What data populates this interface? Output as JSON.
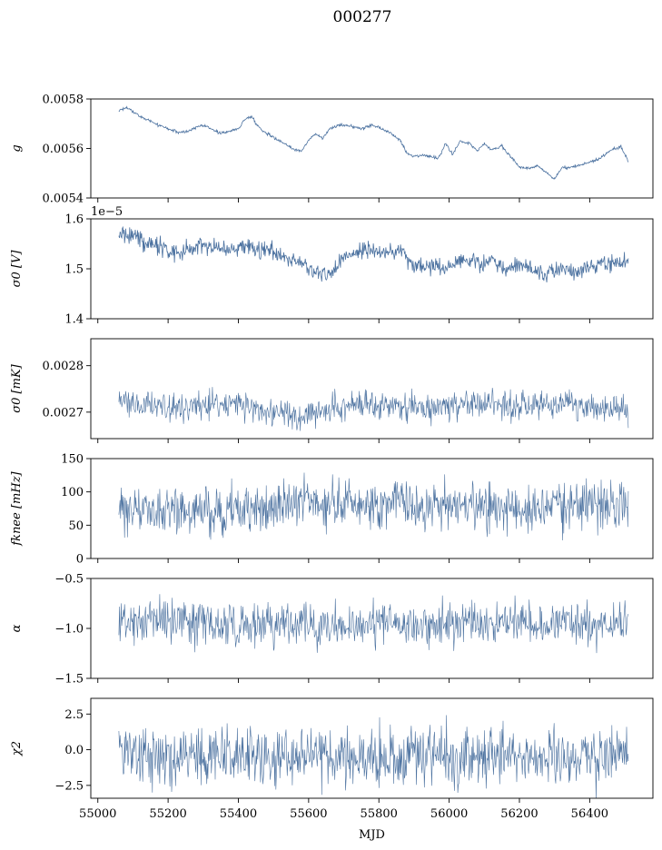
{
  "figure": {
    "title": "000277",
    "line_color": "#4c72a0"
  },
  "chart_data": [
    {
      "type": "line",
      "ylabel": "g",
      "ylim": [
        0.0054,
        0.0058
      ],
      "yticks": [
        0.0054,
        0.0056,
        0.0058
      ],
      "ytick_labels": [
        "0.0054",
        "0.0056",
        "0.0058"
      ],
      "offset_label": "",
      "xlim": [
        54980,
        56580
      ],
      "noise": 3e-06,
      "series": [
        {
          "x": [
            55060,
            55080,
            55100,
            55120,
            55150,
            55180,
            55200,
            55230,
            55260,
            55290,
            55310,
            55330,
            55350,
            55380,
            55400,
            55420,
            55440,
            55450,
            55470,
            55500,
            55530,
            55560,
            55580,
            55600,
            55620,
            55640,
            55660,
            55690,
            55720,
            55750,
            55780,
            55800,
            55830,
            55860,
            55880,
            55900,
            55940,
            55970,
            55990,
            56010,
            56030,
            56060,
            56080,
            56100,
            56120,
            56150,
            56170,
            56200,
            56220,
            56240,
            56250,
            56280,
            56300,
            56320,
            56350,
            56380,
            56400,
            56430,
            56460,
            56490,
            56510
          ],
          "y": [
            0.005755,
            0.005765,
            0.00575,
            0.00573,
            0.00571,
            0.00569,
            0.00568,
            0.005665,
            0.00567,
            0.005695,
            0.00569,
            0.005675,
            0.00566,
            0.00567,
            0.00568,
            0.00572,
            0.00573,
            0.0057,
            0.00567,
            0.005645,
            0.00562,
            0.005595,
            0.00559,
            0.005635,
            0.00566,
            0.00564,
            0.00568,
            0.005695,
            0.00569,
            0.00568,
            0.005695,
            0.005685,
            0.005665,
            0.005635,
            0.00558,
            0.00557,
            0.00557,
            0.00556,
            0.00562,
            0.005575,
            0.00563,
            0.00562,
            0.00559,
            0.00562,
            0.005595,
            0.00561,
            0.005575,
            0.005525,
            0.00552,
            0.005525,
            0.00553,
            0.0055,
            0.005475,
            0.00552,
            0.005525,
            0.005535,
            0.005545,
            0.00556,
            0.005595,
            0.005605,
            0.005545
          ]
        }
      ]
    },
    {
      "type": "line",
      "ylabel": "σ0 [V]",
      "ylim": [
        1.4,
        1.6
      ],
      "yticks": [
        1.4,
        1.5,
        1.6
      ],
      "ytick_labels": [
        "1.4",
        "1.5",
        "1.6"
      ],
      "offset_label": "1e−5",
      "xlim": [
        54980,
        56580
      ],
      "noise": 0.009,
      "series": [
        {
          "x": [
            55060,
            55100,
            55140,
            55180,
            55200,
            55230,
            55260,
            55300,
            55340,
            55380,
            55420,
            55450,
            55480,
            55520,
            55550,
            55580,
            55600,
            55620,
            55640,
            55660,
            55690,
            55720,
            55760,
            55800,
            55840,
            55870,
            55890,
            55910,
            55940,
            55970,
            56000,
            56030,
            56060,
            56090,
            56120,
            56150,
            56170,
            56200,
            56220,
            56240,
            56260,
            56280,
            56290,
            56310,
            56340,
            56370,
            56400,
            56430,
            56460,
            56490,
            56510
          ],
          "y": [
            1.57,
            1.565,
            1.55,
            1.545,
            1.54,
            1.53,
            1.54,
            1.545,
            1.545,
            1.54,
            1.545,
            1.54,
            1.54,
            1.525,
            1.52,
            1.515,
            1.5,
            1.49,
            1.495,
            1.485,
            1.515,
            1.53,
            1.54,
            1.535,
            1.535,
            1.54,
            1.51,
            1.505,
            1.505,
            1.505,
            1.5,
            1.52,
            1.52,
            1.51,
            1.515,
            1.505,
            1.5,
            1.505,
            1.505,
            1.5,
            1.485,
            1.495,
            1.495,
            1.495,
            1.5,
            1.495,
            1.505,
            1.51,
            1.515,
            1.515,
            1.515
          ]
        }
      ]
    },
    {
      "type": "line",
      "ylabel": "σ0 [mK]",
      "ylim": [
        0.002643,
        0.002858
      ],
      "yticks": [
        0.0027,
        0.0028
      ],
      "ytick_labels": [
        "0.0027",
        "0.0028"
      ],
      "offset_label": "",
      "xlim": [
        54980,
        56580
      ],
      "noise": 1.5e-05,
      "series": [
        {
          "x": [
            55060,
            55120,
            55180,
            55240,
            55300,
            55360,
            55400,
            55440,
            55480,
            55520,
            55560,
            55600,
            55640,
            55680,
            55720,
            55760,
            55800,
            55840,
            55880,
            55910,
            55940,
            55980,
            56020,
            56060,
            56100,
            56140,
            56180,
            56220,
            56260,
            56290,
            56320,
            56360,
            56400,
            56440,
            56480,
            56510
          ],
          "y": [
            0.002722,
            0.002718,
            0.002715,
            0.002712,
            0.002716,
            0.002718,
            0.002722,
            0.002712,
            0.002702,
            0.002698,
            0.002688,
            0.002695,
            0.002705,
            0.002712,
            0.002715,
            0.002714,
            0.002716,
            0.002712,
            0.002708,
            0.002714,
            0.002706,
            0.002712,
            0.002716,
            0.00272,
            0.002718,
            0.002716,
            0.002712,
            0.002714,
            0.002718,
            0.002712,
            0.00272,
            0.002718,
            0.002712,
            0.00271,
            0.002708,
            0.002706
          ]
        }
      ]
    },
    {
      "type": "line",
      "ylabel": "fknee [mHz]",
      "ylim": [
        0,
        150
      ],
      "yticks": [
        0,
        50,
        100,
        150
      ],
      "ytick_labels": [
        "0",
        "50",
        "100",
        "150"
      ],
      "offset_label": "",
      "xlim": [
        54980,
        56580
      ],
      "noise": 18,
      "series": [
        {
          "x": [
            55060,
            55120,
            55200,
            55280,
            55360,
            55420,
            55480,
            55540,
            55580,
            55620,
            55680,
            55740,
            55800,
            55860,
            55900,
            55950,
            56000,
            56060,
            56120,
            56180,
            56220,
            56250,
            56270,
            56290,
            56310,
            56340,
            56380,
            56420,
            56460,
            56510
          ],
          "y": [
            72,
            70,
            68,
            68,
            70,
            72,
            78,
            80,
            82,
            88,
            85,
            84,
            84,
            82,
            80,
            78,
            80,
            82,
            80,
            76,
            70,
            72,
            75,
            82,
            80,
            78,
            80,
            80,
            80,
            80
          ]
        }
      ]
    },
    {
      "type": "line",
      "ylabel": "α",
      "ylim": [
        -1.5,
        -0.5
      ],
      "yticks": [
        -1.5,
        -1.0,
        -0.5
      ],
      "ytick_labels": [
        "−1.5",
        "−1.0",
        "−0.5"
      ],
      "offset_label": "",
      "xlim": [
        54980,
        56580
      ],
      "noise": 0.11,
      "series": [
        {
          "x": [
            55060,
            55120,
            55200,
            55280,
            55360,
            55420,
            55480,
            55540,
            55600,
            55660,
            55720,
            55780,
            55840,
            55880,
            55920,
            55980,
            56040,
            56100,
            56160,
            56220,
            56260,
            56300,
            56340,
            56400,
            56460,
            56510
          ],
          "y": [
            -0.93,
            -0.92,
            -0.91,
            -0.93,
            -0.95,
            -0.99,
            -0.97,
            -0.94,
            -0.95,
            -0.97,
            -0.96,
            -0.95,
            -0.96,
            -0.98,
            -0.95,
            -0.94,
            -0.95,
            -0.97,
            -0.94,
            -0.94,
            -0.96,
            -0.95,
            -0.95,
            -0.95,
            -0.95,
            -0.94
          ]
        }
      ]
    },
    {
      "type": "line",
      "ylabel": "χ2",
      "ylim": [
        -3.4,
        3.6
      ],
      "yticks": [
        -2.5,
        0.0,
        2.5
      ],
      "ytick_labels": [
        "−2.5",
        "0.0",
        "2.5"
      ],
      "offset_label": "",
      "xlabel": "MJD",
      "xticks": [
        55000,
        55200,
        55400,
        55600,
        55800,
        56000,
        56200,
        56400
      ],
      "xtick_labels": [
        "55000",
        "55200",
        "55400",
        "55600",
        "55800",
        "56000",
        "56200",
        "56400"
      ],
      "xlim": [
        54980,
        56580
      ],
      "noise": 1.0,
      "series": [
        {
          "x": [
            55060,
            55200,
            55400,
            55600,
            55800,
            56000,
            56200,
            56400,
            56510
          ],
          "y": [
            -0.5,
            -0.45,
            -0.35,
            -0.45,
            -0.55,
            -0.5,
            -0.5,
            -0.55,
            -0.55
          ]
        }
      ]
    }
  ]
}
